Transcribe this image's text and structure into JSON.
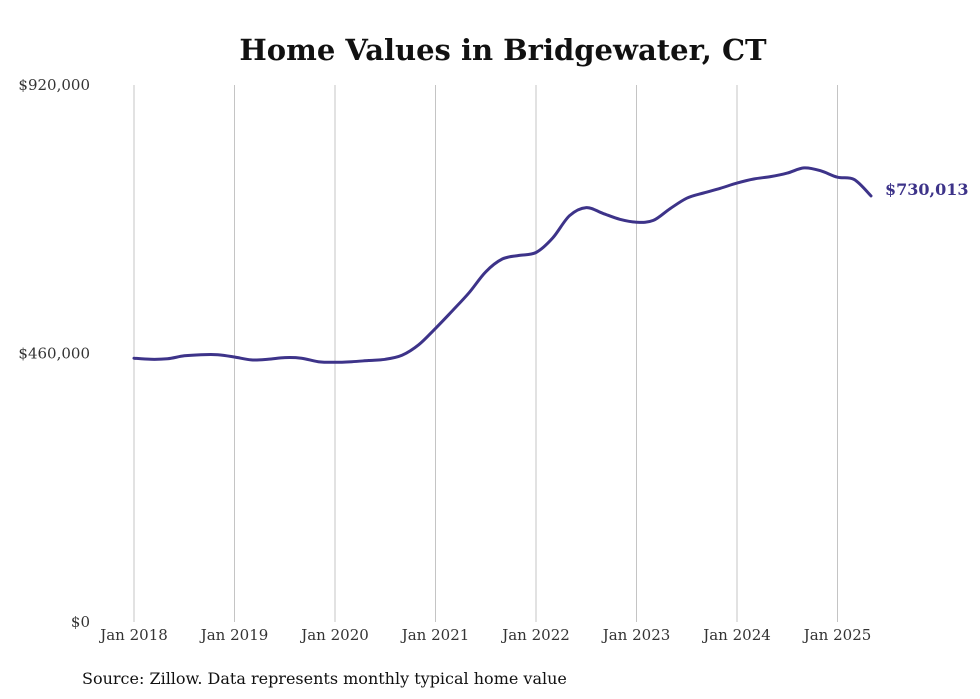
{
  "chart_data": {
    "type": "line",
    "title": "Home Values in Bridgewater, CT",
    "source": "Source: Zillow. Data represents monthly typical home value",
    "y_ticks": [
      {
        "value": 0,
        "label": "$0"
      },
      {
        "value": 460000,
        "label": "$460,000"
      },
      {
        "value": 920000,
        "label": "$920,000"
      }
    ],
    "ylim": [
      0,
      920000
    ],
    "x_ticks": [
      {
        "date": "2018-01",
        "label": "Jan 2018"
      },
      {
        "date": "2019-01",
        "label": "Jan 2019"
      },
      {
        "date": "2020-01",
        "label": "Jan 2020"
      },
      {
        "date": "2021-01",
        "label": "Jan 2021"
      },
      {
        "date": "2022-01",
        "label": "Jan 2022"
      },
      {
        "date": "2023-01",
        "label": "Jan 2023"
      },
      {
        "date": "2024-01",
        "label": "Jan 2024"
      },
      {
        "date": "2025-01",
        "label": "Jan 2025"
      }
    ],
    "xlim": [
      "2018-01",
      "2025-05"
    ],
    "grid": "vertical",
    "line_color": "#3d3389",
    "end_label": "$730,013",
    "series": [
      {
        "x": [
          "2018-01",
          "2018-03",
          "2018-05",
          "2018-07",
          "2018-09",
          "2018-11",
          "2019-01",
          "2019-03",
          "2019-05",
          "2019-07",
          "2019-09",
          "2019-11",
          "2020-01",
          "2020-03",
          "2020-05",
          "2020-07",
          "2020-09",
          "2020-11",
          "2021-01",
          "2021-03",
          "2021-05",
          "2021-07",
          "2021-09",
          "2021-11",
          "2022-01",
          "2022-03",
          "2022-05",
          "2022-07",
          "2022-09",
          "2022-11",
          "2023-01",
          "2023-03",
          "2023-05",
          "2023-07",
          "2023-09",
          "2023-11",
          "2024-01",
          "2024-03",
          "2024-05",
          "2024-07",
          "2024-09",
          "2024-11",
          "2025-01",
          "2025-03",
          "2025-05"
        ],
        "values": [
          452000,
          450000,
          451000,
          456000,
          458000,
          458000,
          454000,
          449000,
          450000,
          453000,
          452000,
          446000,
          445000,
          446000,
          448000,
          450000,
          457000,
          475000,
          503000,
          533000,
          564000,
          600000,
          622000,
          628000,
          633000,
          658000,
          696000,
          710000,
          700000,
          690000,
          685000,
          688000,
          708000,
          726000,
          735000,
          743000,
          752000,
          759000,
          763000,
          769000,
          778000,
          773000,
          762000,
          758000,
          730013
        ]
      }
    ]
  }
}
